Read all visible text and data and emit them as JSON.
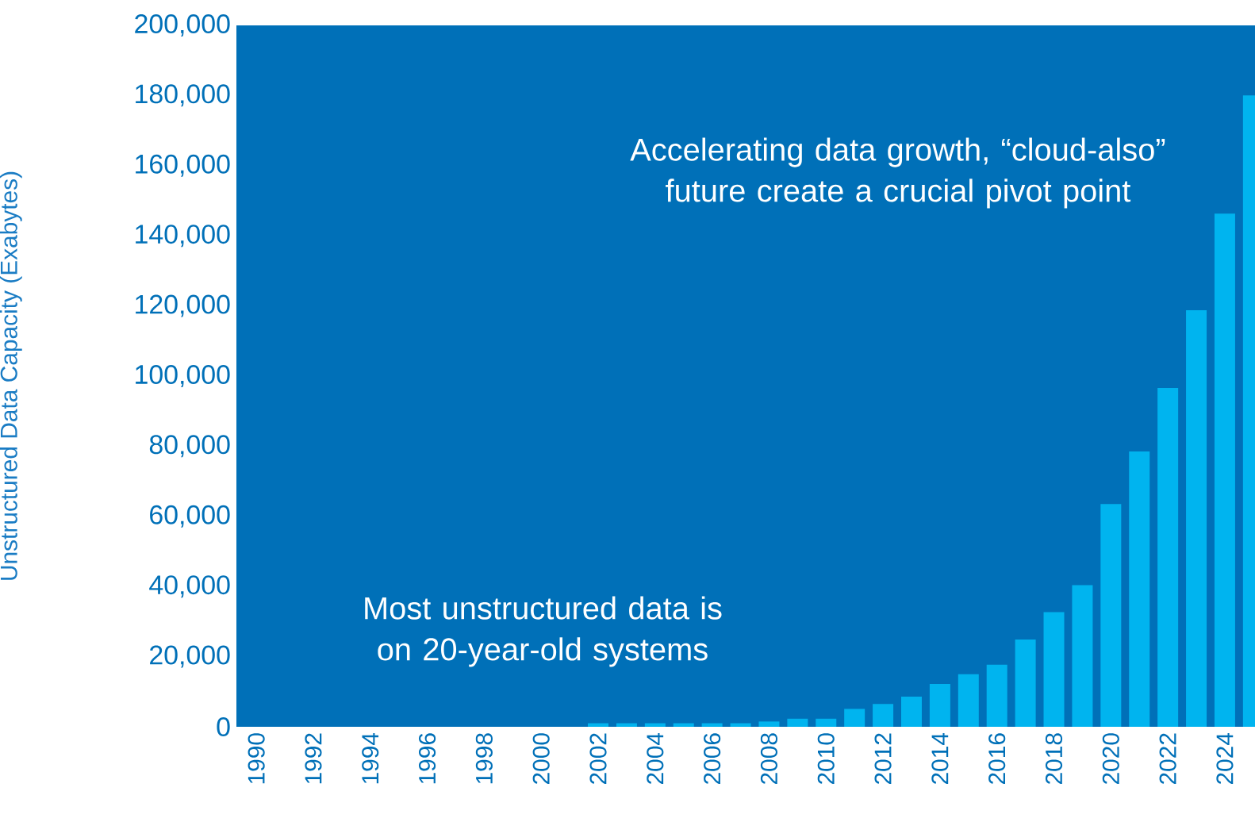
{
  "chart_data": {
    "type": "bar",
    "ylabel": "Unstructured Data Capacity (Exabytes)",
    "categories": [
      "1990",
      null,
      "1992",
      null,
      "1994",
      null,
      "1996",
      null,
      "1998",
      null,
      "2000",
      null,
      "2002",
      null,
      "2004",
      null,
      "2006",
      null,
      "2008",
      null,
      "2010",
      null,
      "2012",
      null,
      "2014",
      null,
      "2016",
      null,
      "2018",
      null,
      "2020",
      null,
      "2022",
      null,
      "2024",
      null
    ],
    "values": [
      0,
      0,
      0,
      0,
      0,
      0,
      0,
      0,
      0,
      0,
      0,
      0,
      1000,
      1000,
      1000,
      1000,
      1000,
      1000,
      1500,
      2300,
      2300,
      5100,
      6500,
      8600,
      12200,
      15000,
      17700,
      24900,
      32700,
      40400,
      63500,
      78500,
      96600,
      118800,
      146300,
      180000
    ],
    "color": "#00b4ef",
    "ylim": [
      0,
      200000
    ],
    "yticks": [
      0,
      {
        "value": 20000,
        "label": "20,000"
      },
      {
        "value": 40000,
        "label": "40,000"
      },
      {
        "value": 60000,
        "label": "60,000"
      },
      {
        "value": 80000,
        "label": "80,000"
      },
      {
        "value": 100000,
        "label": "100,000"
      },
      {
        "value": 120000,
        "label": "120,000"
      },
      {
        "value": 140000,
        "label": "140,000"
      },
      {
        "value": 160000,
        "label": "160,000"
      },
      {
        "value": 180000,
        "label": "180,000"
      },
      {
        "value": 200000,
        "label": "200,000"
      }
    ],
    "annotations": [
      "Accelerating data growth, “cloud-also” future create a crucial pivot point",
      "Most unstructured data is on 20-year-old systems"
    ]
  }
}
